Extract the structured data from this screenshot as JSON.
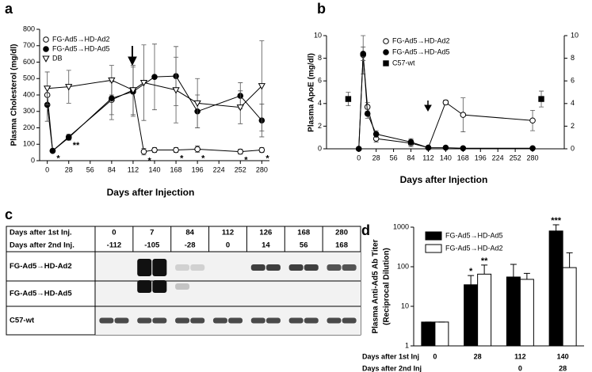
{
  "chart_data": [
    {
      "type": "line",
      "panel_label": "a",
      "ylabel": "Plasma Cholesterol (mg/dl)",
      "xlabel": "Days after Injection",
      "xlim": [
        -10,
        290
      ],
      "xticks": [
        0,
        28,
        56,
        84,
        112,
        140,
        168,
        196,
        224,
        252,
        280
      ],
      "ylim": [
        0,
        800
      ],
      "yticks": [
        0,
        100,
        200,
        300,
        400,
        500,
        600,
        700,
        800
      ],
      "series": [
        {
          "name": "FG-Ad5→HD-Ad2",
          "marker": "open-circle",
          "color": "#000000",
          "x": [
            0,
            7,
            28,
            84,
            112,
            126,
            140,
            168,
            196,
            252,
            280
          ],
          "values": [
            400,
            60,
            145,
            370,
            430,
            55,
            65,
            65,
            70,
            55,
            65
          ],
          "errors": [
            50,
            10,
            15,
            120,
            150,
            20,
            15,
            15,
            20,
            15,
            15
          ],
          "marks": [
            null,
            "*",
            "**",
            null,
            null,
            "*",
            null,
            "*",
            "*",
            "*",
            "*"
          ]
        },
        {
          "name": "FG-Ad5→HD-Ad5",
          "marker": "filled-circle",
          "color": "#000000",
          "x": [
            0,
            7,
            28,
            84,
            112,
            140,
            168,
            196,
            252,
            280
          ],
          "values": [
            340,
            60,
            140,
            380,
            420,
            510,
            515,
            300,
            395,
            245
          ],
          "errors": [
            100,
            10,
            15,
            100,
            150,
            200,
            180,
            100,
            80,
            100
          ]
        },
        {
          "name": "DB",
          "marker": "open-triangle",
          "color": "#000000",
          "x": [
            0,
            28,
            84,
            112,
            126,
            168,
            196,
            252,
            280
          ],
          "values": [
            440,
            450,
            490,
            430,
            475,
            430,
            350,
            325,
            455
          ],
          "errors": [
            100,
            100,
            90,
            150,
            230,
            200,
            150,
            100,
            275
          ]
        }
      ]
    },
    {
      "type": "line",
      "panel_label": "b",
      "ylabel": "Plasma ApoE (mg/dl)",
      "xlabel": "Days after Injection",
      "xlim": [
        -52,
        331
      ],
      "xticks": [
        0,
        28,
        56,
        84,
        112,
        140,
        168,
        196,
        224,
        252,
        280
      ],
      "ylim": [
        0,
        10
      ],
      "yticks": [
        0,
        2,
        4,
        6,
        8,
        10
      ],
      "y2lim": [
        0,
        10
      ],
      "y2ticks": [
        0,
        2,
        4,
        6,
        8,
        10
      ],
      "series": [
        {
          "name": "FG-Ad5→HD-Ad2",
          "marker": "open-circle",
          "color": "#000000",
          "x": [
            0,
            7,
            14,
            28,
            84,
            112,
            140,
            168,
            280
          ],
          "values": [
            0,
            8.3,
            3.7,
            0.9,
            0.5,
            0.1,
            4.1,
            3.0,
            2.5
          ],
          "errors": [
            0,
            1.7,
            0.4,
            0.3,
            0.3,
            0.1,
            0.2,
            1.5,
            0.9
          ]
        },
        {
          "name": "FG-Ad5→HD-Ad5",
          "marker": "filled-circle",
          "color": "#000000",
          "x": [
            0,
            7,
            14,
            28,
            84,
            112,
            140,
            168,
            280
          ],
          "values": [
            0,
            8.4,
            3.1,
            1.3,
            0.6,
            0.1,
            0.1,
            0.05,
            0.05
          ],
          "errors": [
            0,
            0.6,
            0.4,
            0.3,
            0.3,
            0.1,
            0.05,
            0.05,
            0.05
          ]
        },
        {
          "name": "C57-wt",
          "marker": "filled-square",
          "color": "#000000",
          "line": false,
          "x": [
            -17,
            294
          ],
          "values": [
            4.4,
            4.4
          ],
          "errors": [
            0.6,
            0.7
          ]
        }
      ]
    },
    {
      "type": "bar",
      "panel_label": "d",
      "ylog": true,
      "ylabel": [
        "Plasma Anti-Ad5 Ab Titer",
        "(Reciprocal Dilution)"
      ],
      "category_rows": [
        "Days after 1st Inj",
        "Days after 2nd Inj"
      ],
      "categories": [
        "0",
        "28",
        "112",
        "140"
      ],
      "categories2": [
        null,
        null,
        "0",
        "28"
      ],
      "ylim": [
        1,
        1000
      ],
      "yticks": [
        1,
        10,
        100,
        1000
      ],
      "series": [
        {
          "name": "FG-Ad5→HD-Ad5",
          "color": "#000000",
          "values": [
            4,
            35,
            55,
            800
          ],
          "errors": [
            0,
            25,
            60,
            350
          ],
          "marks": [
            null,
            "*",
            null,
            "***"
          ]
        },
        {
          "name": "FG-Ad5→HD-Ad2",
          "color": "#ffffff",
          "values": [
            4,
            65,
            48,
            95
          ],
          "errors": [
            0,
            45,
            20,
            130
          ],
          "marks": [
            null,
            "**",
            null,
            null
          ]
        }
      ]
    }
  ],
  "blot": {
    "panel_label": "c",
    "header_rows": [
      [
        "Days after 1st Inj.",
        "0",
        "7",
        "84",
        "112",
        "126",
        "168",
        "280"
      ],
      [
        "Days after 2nd Inj.",
        "-112",
        "-105",
        "-28",
        "0",
        "14",
        "56",
        "168"
      ]
    ],
    "rows": [
      "FG-Ad5→HD-Ad2",
      "FG-Ad5→HD-Ad5",
      "C57-wt"
    ]
  }
}
